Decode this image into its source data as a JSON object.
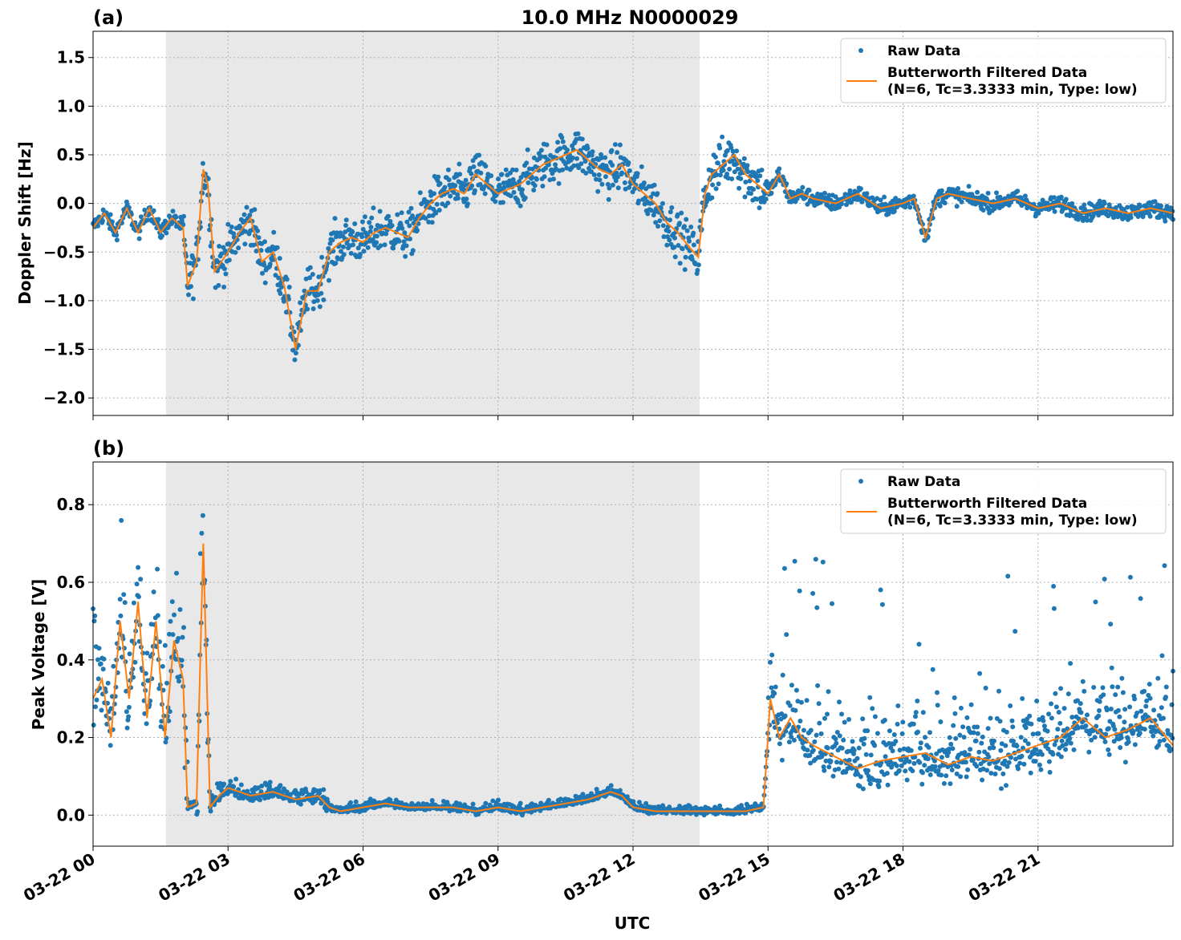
{
  "figure": {
    "title": "10.0 MHz N0000029",
    "xlabel": "UTC"
  },
  "colors": {
    "raw": "#1f77b4",
    "filtered": "#ff7f0e",
    "shade": "#e8e8e8",
    "grid": "#b0b0b0"
  },
  "chart_data": [
    {
      "type": "scatter",
      "panel_label": "(a)",
      "title": "10.0 MHz N0000029",
      "ylabel": "Doppler Shift [Hz]",
      "xlabel": "",
      "x_units": "hours since 03-22 00 UTC",
      "xlim": [
        0,
        24
      ],
      "ylim": [
        -2.18,
        1.77
      ],
      "yticks": [
        1.5,
        1.0,
        0.5,
        0.0,
        -0.5,
        -1.0,
        -1.5,
        -2.0
      ],
      "ytick_labels": [
        "1.5",
        "1.0",
        "0.5",
        "0.0",
        "−0.5",
        "−1.0",
        "−1.5",
        "−2.0"
      ],
      "shaded_interval": [
        1.62,
        13.48
      ],
      "grid": true,
      "legend_position": "top-right",
      "legend": {
        "raw": "Raw Data",
        "filtered_line1": "Butterworth Filtered Data",
        "filtered_line2": "(N=6, Tc=3.3333 min, Type: low)"
      },
      "series": [
        {
          "name": "Butterworth Filtered Data",
          "x": [
            0,
            0.25,
            0.5,
            0.75,
            1.0,
            1.25,
            1.5,
            1.75,
            2.0,
            2.1,
            2.3,
            2.45,
            2.55,
            2.7,
            3.0,
            3.25,
            3.5,
            3.75,
            4.0,
            4.25,
            4.5,
            4.75,
            5.0,
            5.25,
            5.5,
            5.75,
            6.0,
            6.25,
            6.5,
            6.75,
            7.0,
            7.25,
            7.5,
            7.75,
            8.0,
            8.25,
            8.5,
            8.75,
            9.0,
            9.25,
            9.5,
            9.75,
            10.0,
            10.25,
            10.5,
            10.75,
            11.0,
            11.25,
            11.5,
            11.75,
            12.0,
            12.25,
            12.5,
            12.75,
            13.0,
            13.25,
            13.45,
            13.6,
            13.75,
            14.0,
            14.25,
            14.5,
            14.75,
            15.0,
            15.25,
            15.5,
            15.75,
            16.0,
            16.5,
            17.0,
            17.5,
            18.0,
            18.25,
            18.5,
            18.75,
            19.0,
            19.5,
            20.0,
            20.5,
            21.0,
            21.5,
            22.0,
            22.5,
            23.0,
            23.5,
            24.0
          ],
          "y": [
            -0.25,
            -0.1,
            -0.3,
            -0.05,
            -0.3,
            -0.05,
            -0.3,
            -0.15,
            -0.25,
            -0.85,
            -0.6,
            0.35,
            0.2,
            -0.7,
            -0.5,
            -0.3,
            -0.15,
            -0.6,
            -0.5,
            -0.85,
            -1.5,
            -0.9,
            -0.9,
            -0.5,
            -0.4,
            -0.35,
            -0.4,
            -0.3,
            -0.25,
            -0.3,
            -0.35,
            -0.15,
            0.0,
            0.1,
            0.15,
            0.1,
            0.3,
            0.2,
            0.1,
            0.15,
            0.2,
            0.3,
            0.4,
            0.45,
            0.5,
            0.55,
            0.45,
            0.35,
            0.3,
            0.4,
            0.2,
            0.1,
            0.0,
            -0.2,
            -0.3,
            -0.45,
            -0.55,
            0.1,
            0.3,
            0.4,
            0.5,
            0.3,
            0.2,
            0.1,
            0.3,
            0.05,
            0.1,
            0.05,
            0.0,
            0.1,
            -0.05,
            0.0,
            0.05,
            -0.35,
            0.05,
            0.1,
            0.05,
            0.0,
            0.05,
            -0.05,
            0.0,
            -0.1,
            -0.05,
            -0.1,
            -0.05,
            -0.1
          ]
        }
      ]
    },
    {
      "type": "scatter",
      "panel_label": "(b)",
      "title": "",
      "ylabel": "Peak Voltage [V]",
      "xlabel": "UTC",
      "x_units": "hours since 03-22 00 UTC",
      "xlim": [
        0,
        24
      ],
      "ylim": [
        -0.08,
        0.91
      ],
      "yticks": [
        0.8,
        0.6,
        0.4,
        0.2,
        0.0
      ],
      "ytick_labels": [
        "0.8",
        "0.6",
        "0.4",
        "0.2",
        "0.0"
      ],
      "shaded_interval": [
        1.62,
        13.48
      ],
      "grid": true,
      "legend_position": "top-right",
      "legend": {
        "raw": "Raw Data",
        "filtered_line1": "Butterworth Filtered Data",
        "filtered_line2": "(N=6, Tc=3.3333 min, Type: low)"
      },
      "xticks": [
        0,
        3,
        6,
        9,
        12,
        15,
        18,
        21
      ],
      "xtick_labels": [
        "03-22 00",
        "03-22 03",
        "03-22 06",
        "03-22 09",
        "03-22 12",
        "03-22 15",
        "03-22 18",
        "03-22 21"
      ],
      "series": [
        {
          "name": "Butterworth Filtered Data",
          "x": [
            0,
            0.2,
            0.4,
            0.6,
            0.8,
            1.0,
            1.2,
            1.4,
            1.6,
            1.8,
            2.0,
            2.1,
            2.3,
            2.45,
            2.6,
            2.8,
            3.0,
            3.5,
            4.0,
            4.5,
            5.0,
            5.25,
            5.5,
            6.0,
            6.5,
            7.0,
            7.5,
            8.0,
            8.5,
            9.0,
            9.5,
            10.0,
            10.5,
            11.0,
            11.5,
            11.75,
            12.0,
            12.5,
            13.0,
            13.5,
            14.0,
            14.5,
            14.9,
            15.05,
            15.25,
            15.5,
            15.75,
            16.0,
            16.5,
            17.0,
            17.5,
            18.0,
            18.5,
            19.0,
            19.5,
            20.0,
            20.5,
            21.0,
            21.5,
            22.0,
            22.5,
            23.0,
            23.5,
            24.0
          ],
          "y": [
            0.3,
            0.35,
            0.2,
            0.5,
            0.3,
            0.55,
            0.25,
            0.5,
            0.2,
            0.45,
            0.35,
            0.02,
            0.03,
            0.7,
            0.02,
            0.05,
            0.07,
            0.05,
            0.06,
            0.04,
            0.05,
            0.02,
            0.01,
            0.02,
            0.03,
            0.02,
            0.02,
            0.02,
            0.01,
            0.02,
            0.01,
            0.02,
            0.03,
            0.04,
            0.06,
            0.05,
            0.02,
            0.01,
            0.01,
            0.01,
            0.01,
            0.01,
            0.02,
            0.3,
            0.2,
            0.25,
            0.2,
            0.18,
            0.15,
            0.12,
            0.14,
            0.15,
            0.16,
            0.13,
            0.15,
            0.14,
            0.16,
            0.18,
            0.2,
            0.25,
            0.2,
            0.22,
            0.25,
            0.18
          ]
        }
      ]
    }
  ]
}
